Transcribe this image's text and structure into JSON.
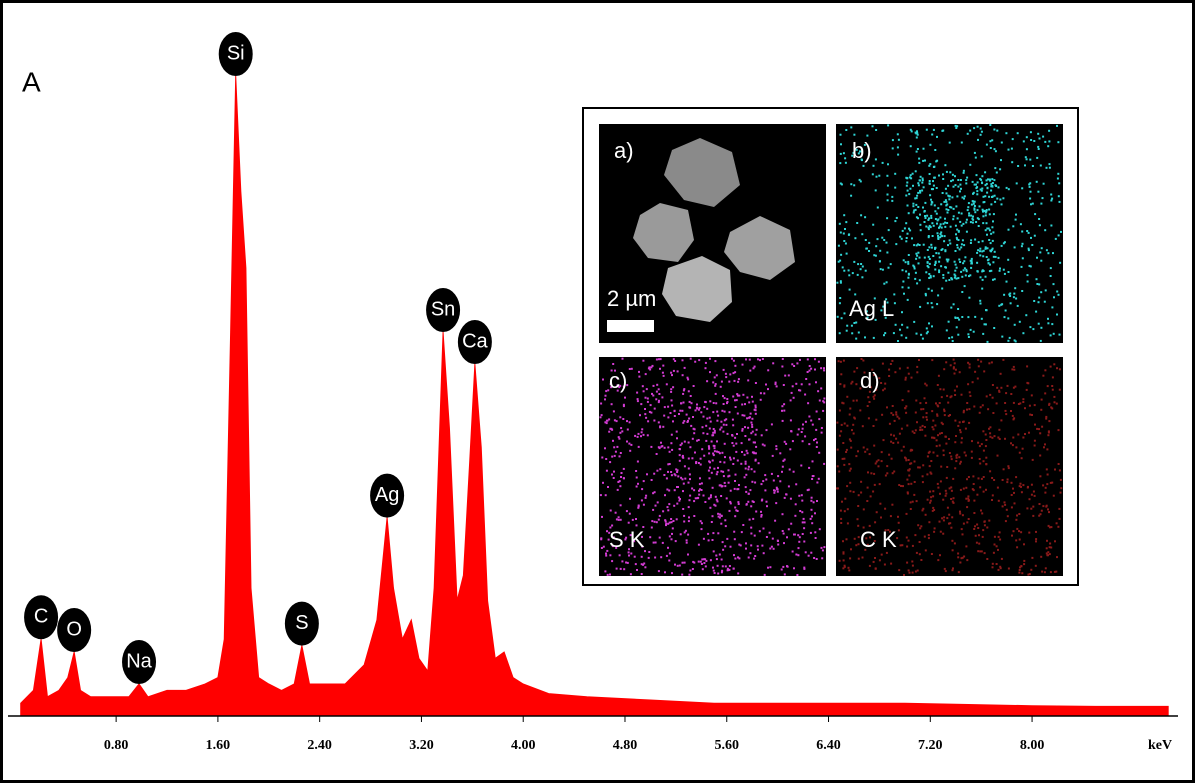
{
  "chart_data": {
    "type": "area",
    "panel_label": "A",
    "x_label": "keV",
    "x": [
      0.05,
      0.15,
      0.21,
      0.26,
      0.35,
      0.42,
      0.47,
      0.52,
      0.6,
      0.75,
      0.9,
      0.98,
      1.05,
      1.2,
      1.35,
      1.5,
      1.6,
      1.65,
      1.7,
      1.74,
      1.78,
      1.82,
      1.86,
      1.92,
      2.0,
      2.1,
      2.2,
      2.26,
      2.32,
      2.45,
      2.6,
      2.75,
      2.85,
      2.93,
      2.98,
      3.05,
      3.12,
      3.18,
      3.25,
      3.3,
      3.37,
      3.42,
      3.48,
      3.53,
      3.58,
      3.62,
      3.67,
      3.72,
      3.78,
      3.85,
      3.92,
      4.0,
      4.2,
      4.5,
      5.0,
      5.5,
      6.0,
      6.5,
      7.0,
      7.5,
      8.0,
      8.5,
      9.0,
      9.07
    ],
    "values": [
      2,
      4,
      12,
      3,
      4,
      6,
      10,
      4,
      3,
      3,
      3,
      5,
      3,
      4,
      4,
      5,
      6,
      12,
      60,
      100,
      82,
      70,
      20,
      6,
      5,
      4,
      5,
      11,
      5,
      5,
      5,
      8,
      15,
      31,
      20,
      12,
      15,
      9,
      7,
      20,
      60,
      45,
      18,
      22,
      40,
      55,
      42,
      18,
      9,
      10,
      6,
      5,
      3.5,
      3,
      2.5,
      2,
      2,
      2,
      2,
      1.8,
      1.6,
      1.5,
      1.5,
      1.5
    ],
    "color": "#ff0000",
    "xlim": [
      -0.05,
      9.1
    ],
    "ylim": [
      0,
      100
    ],
    "xticks": [
      {
        "value": 0.8,
        "label": "0.80"
      },
      {
        "value": 1.6,
        "label": "1.60"
      },
      {
        "value": 2.4,
        "label": "2.40"
      },
      {
        "value": 3.2,
        "label": "3.20"
      },
      {
        "value": 4.0,
        "label": "4.00"
      },
      {
        "value": 4.8,
        "label": "4.80"
      },
      {
        "value": 5.6,
        "label": "5.60"
      },
      {
        "value": 6.4,
        "label": "6.40"
      },
      {
        "value": 7.2,
        "label": "7.20"
      },
      {
        "value": 8.0,
        "label": "8.00"
      }
    ],
    "peaks": [
      {
        "label": "C",
        "x": 0.21
      },
      {
        "label": "O",
        "x": 0.47
      },
      {
        "label": "Na",
        "x": 0.98
      },
      {
        "label": "Si",
        "x": 1.74
      },
      {
        "label": "S",
        "x": 2.26
      },
      {
        "label": "Ag",
        "x": 2.93
      },
      {
        "label": "Sn",
        "x": 3.37
      },
      {
        "label": "Ca",
        "x": 3.62
      }
    ],
    "inset": {
      "panels": [
        {
          "tag": "a)",
          "scale_bar": "2 µm"
        },
        {
          "tag": "b)",
          "label": "Ag L"
        },
        {
          "tag": "c)",
          "label": "S K"
        },
        {
          "tag": "d)",
          "label": "C K"
        }
      ]
    }
  }
}
